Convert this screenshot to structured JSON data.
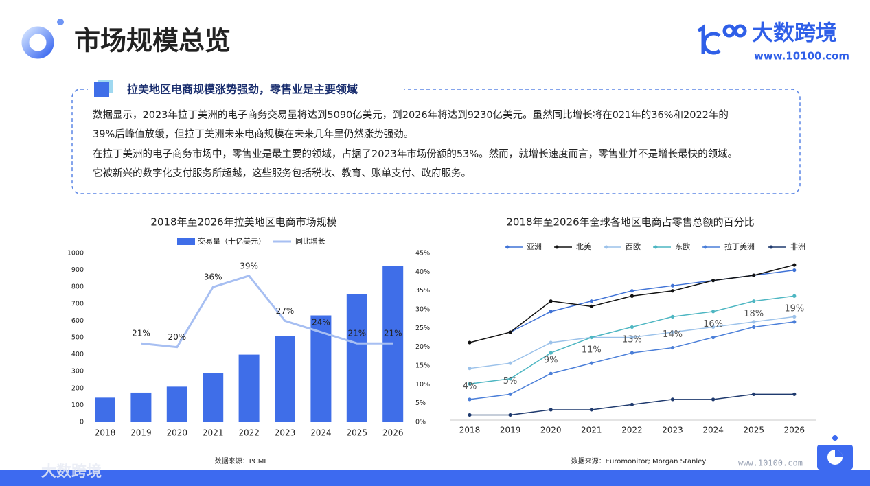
{
  "header": {
    "title": "市场规模总览",
    "brand": "大数跨境",
    "brand_url": "www.10100.com"
  },
  "callout": {
    "title": "拉美地区电商规模涨势强劲，零售业是主要领域",
    "lines": [
      "数据显示，2023年拉丁美洲的电子商务交易量将达到5090亿美元，到2026年将达到9230亿美元。虽然同比增长将在021年的36%和2022年的",
      "39%后峰值放缓，但拉丁美洲未来电商规模在未来几年里仍然涨势强劲。",
      "在拉丁美洲的电子商务市场中，零售业是最主要的领域，占据了2023年市场份额的53%。然而，就增长速度而言，零售业并不是增长最快的领域。",
      "它被新兴的数字化支付服务所超越，这些服务包括税收、教育、账单支付、政府服务。"
    ]
  },
  "chart_data": [
    {
      "type": "bar",
      "title": "2018年至2026年拉美地区电商市场规模",
      "categories": [
        "2018",
        "2019",
        "2020",
        "2021",
        "2022",
        "2023",
        "2024",
        "2025",
        "2026"
      ],
      "series": [
        {
          "name": "交易量（十亿美元）",
          "color": "#3f6ee8",
          "values": [
            145,
            175,
            210,
            290,
            400,
            509,
            632,
            760,
            923
          ]
        },
        {
          "name": "同比增长",
          "type": "line",
          "axis": "y2",
          "color": "#a7bff2",
          "values": [
            null,
            21,
            20,
            36,
            39,
            27,
            24,
            21,
            21
          ],
          "value_labels": [
            null,
            "21%",
            "20%",
            "36%",
            "39%",
            "27%",
            "24%",
            "21%",
            "21%"
          ]
        }
      ],
      "ylim": [
        0,
        1000
      ],
      "yticks": [
        0,
        100,
        200,
        300,
        400,
        500,
        600,
        700,
        800,
        900,
        1000
      ],
      "y2lim": [
        0,
        45
      ],
      "y2ticks": [
        {
          "value": 0,
          "label": "0%"
        },
        {
          "value": 5,
          "label": "5%"
        },
        {
          "value": 10,
          "label": "10%"
        },
        {
          "value": 15,
          "label": "15%"
        },
        {
          "value": 20,
          "label": "20%"
        },
        {
          "value": 25,
          "label": "25%"
        },
        {
          "value": 30,
          "label": "30%"
        },
        {
          "value": 35,
          "label": "35%"
        },
        {
          "value": 40,
          "label": "40%"
        },
        {
          "value": 45,
          "label": "45%"
        }
      ],
      "source": "数据来源：PCMI"
    },
    {
      "type": "line",
      "title": "2018年至2026年全球各地区电商占零售总额的百分比",
      "categories": [
        "2018",
        "2019",
        "2020",
        "2021",
        "2022",
        "2023",
        "2024",
        "2025",
        "2026"
      ],
      "ylim": [
        0,
        32
      ],
      "series": [
        {
          "name": "亚洲",
          "color": "#3f72d6",
          "values": [
            null,
            17,
            21,
            23,
            25,
            26,
            27,
            28,
            29
          ]
        },
        {
          "name": "北美",
          "color": "#111111",
          "values": [
            15,
            17,
            23,
            22,
            24,
            25,
            27,
            28,
            30
          ]
        },
        {
          "name": "西欧",
          "color": "#9cc2ea",
          "values": [
            10,
            11,
            15,
            16,
            16,
            17,
            18,
            19,
            20
          ]
        },
        {
          "name": "东欧",
          "color": "#4db6c2",
          "values": [
            7,
            8,
            13,
            16,
            18,
            20,
            21,
            23,
            24
          ]
        },
        {
          "name": "拉丁美洲",
          "color": "#4a7ed8",
          "values": [
            4,
            5,
            9,
            11,
            13,
            14,
            16,
            18,
            19
          ],
          "value_labels": [
            "4%",
            "5%",
            "9%",
            "11%",
            "13%",
            "14%",
            "16%",
            "18%",
            "19%"
          ]
        },
        {
          "name": "非洲",
          "color": "#1f3a6e",
          "values": [
            1,
            1,
            2,
            2,
            3,
            4,
            4,
            5,
            5
          ]
        }
      ],
      "source": "数据来源：Euromonitor; Morgan Stanley"
    }
  ],
  "footer": {
    "watermark": "大数跨境",
    "url": "www.10100.com"
  }
}
